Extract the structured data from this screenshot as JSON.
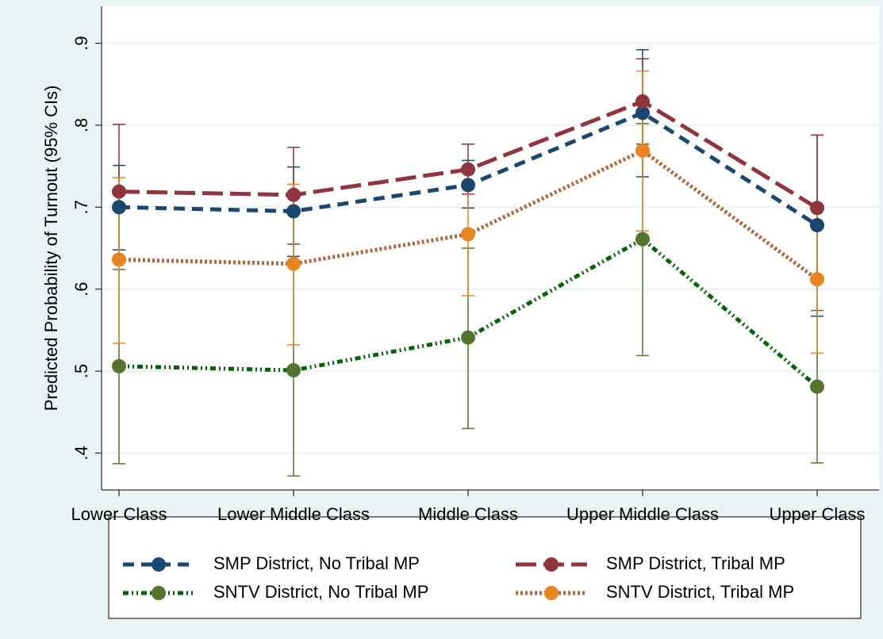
{
  "chart_data": {
    "type": "line",
    "ylabel": "Predicted Probability of Turnout (95% CIs)",
    "categories": [
      "Lower Class",
      "Lower Middle Class",
      "Middle Class",
      "Upper Middle Class",
      "Upper Class"
    ],
    "ylim": [
      0.355,
      0.945
    ],
    "yticks": [
      {
        "value": 0.4,
        "label": ".4"
      },
      {
        "value": 0.5,
        "label": ".5"
      },
      {
        "value": 0.6,
        "label": ".6"
      },
      {
        "value": 0.7,
        "label": ".7"
      },
      {
        "value": 0.8,
        "label": ".8"
      },
      {
        "value": 0.9,
        "label": ".9"
      }
    ],
    "grid": true,
    "legend": "bottom",
    "series": [
      {
        "name": "SMP District, No Tribal MP",
        "color": "#1a476f",
        "line_color": "#1a476f",
        "dash": "14,9",
        "values": [
          0.7,
          0.695,
          0.727,
          0.815,
          0.678
        ],
        "lower": [
          0.648,
          0.64,
          0.699,
          0.737,
          0.567
        ],
        "upper": [
          0.751,
          0.749,
          0.757,
          0.892,
          0.788
        ]
      },
      {
        "name": "SMP District, Tribal MP",
        "color": "#90353b",
        "line_color": "#90353b",
        "dash": "26,9",
        "values": [
          0.719,
          0.715,
          0.746,
          0.829,
          0.699
        ],
        "lower": [
          0.636,
          0.655,
          0.716,
          0.777,
          0.61
        ],
        "upper": [
          0.801,
          0.773,
          0.777,
          0.881,
          0.788
        ]
      },
      {
        "name": "SNTV District, No Tribal MP",
        "color": "#55752f",
        "line_color": "#006400",
        "dash": "7,4,2,4,2,4",
        "values": [
          0.506,
          0.501,
          0.541,
          0.661,
          0.481
        ],
        "lower": [
          0.387,
          0.372,
          0.43,
          0.519,
          0.388
        ],
        "upper": [
          0.624,
          0.63,
          0.65,
          0.802,
          0.574
        ]
      },
      {
        "name": "SNTV District, Tribal MP",
        "color": "#e8851f",
        "line_color": "#b5653a",
        "dash": "3,3",
        "values": [
          0.636,
          0.631,
          0.667,
          0.769,
          0.612
        ],
        "lower": [
          0.534,
          0.532,
          0.592,
          0.671,
          0.522
        ],
        "upper": [
          0.736,
          0.728,
          0.742,
          0.866,
          0.702
        ]
      }
    ]
  }
}
